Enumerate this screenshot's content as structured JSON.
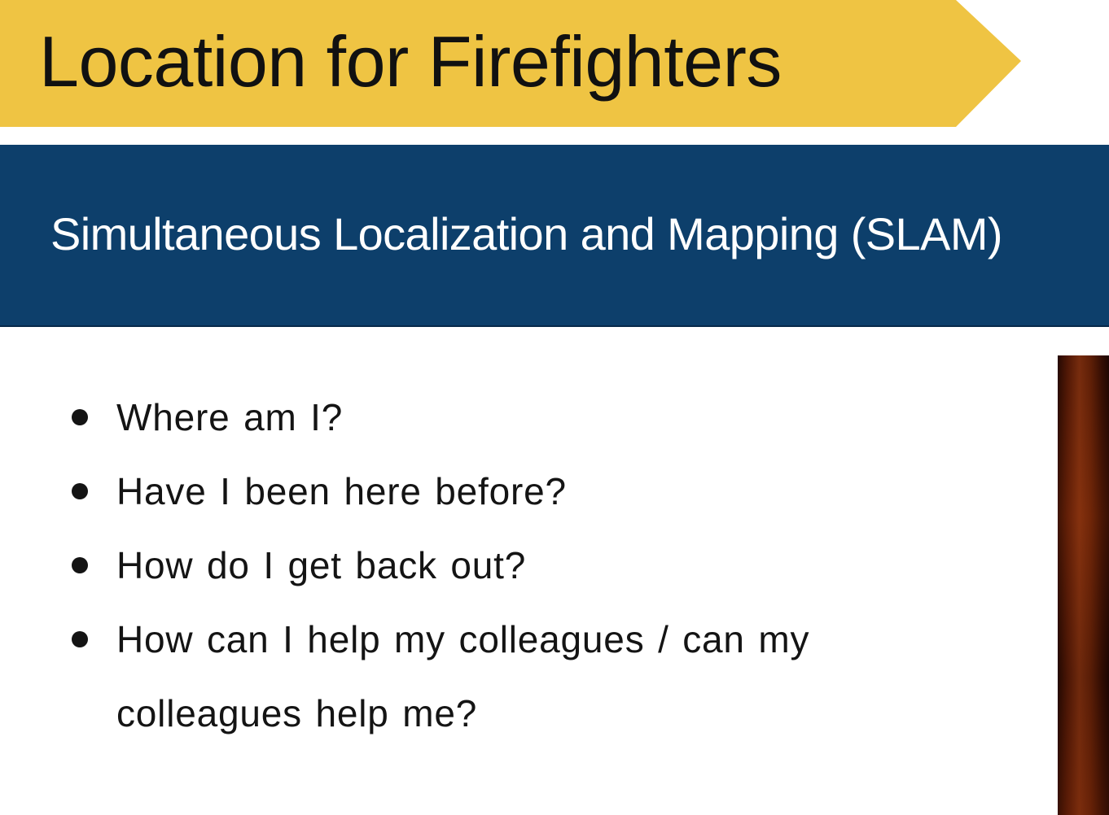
{
  "slide": {
    "title": "Location for Firefighters",
    "subtitle": "Simultaneous Localization and Mapping (SLAM)",
    "bullets": [
      "Where am I?",
      "Have I been here before?",
      "How do I get back out?",
      "How can I help my colleagues / can my colleagues help me?"
    ]
  },
  "colors": {
    "title_banner": "#efc443",
    "subtitle_band": "#0d3f6b",
    "text_dark": "#141414",
    "text_light": "#ffffff"
  }
}
